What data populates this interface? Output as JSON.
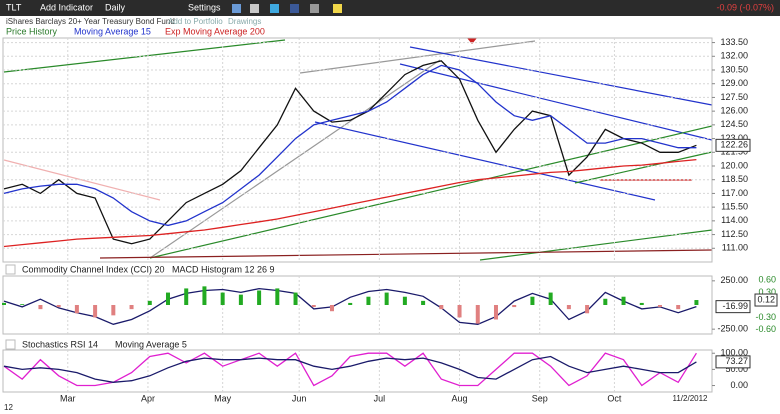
{
  "header": {
    "symbol": "TLT",
    "add_indicator": "Add Indicator",
    "period": "Daily",
    "settings": "Settings",
    "change": "-0.09 (-0.07%)",
    "name": "iShares Barclays 20+ Year Treasury Bond Fund",
    "add_to_portfolio": "Add to Portfolio",
    "drawings": "Drawings"
  },
  "chart_data": [
    {
      "type": "line",
      "ylim": [
        109.5,
        134
      ],
      "yticks": [
        {
          "value": 133.5,
          "label": "133.50"
        },
        {
          "value": 132,
          "label": "132.00"
        },
        {
          "value": 130.5,
          "label": "130.50"
        },
        {
          "value": 129,
          "label": "129.00"
        },
        {
          "value": 127.5,
          "label": "127.50"
        },
        {
          "value": 126,
          "label": "126.00"
        },
        {
          "value": 124.5,
          "label": "124.50"
        },
        {
          "value": 123,
          "label": "123.00"
        },
        {
          "value": 121.5,
          "label": "121.50"
        },
        {
          "value": 120,
          "label": "120.00"
        },
        {
          "value": 118.5,
          "label": "118.50"
        },
        {
          "value": 117,
          "label": "117.00"
        },
        {
          "value": 115.5,
          "label": "115.50"
        },
        {
          "value": 114,
          "label": "114.00"
        },
        {
          "value": 112.5,
          "label": "112.50"
        },
        {
          "value": 111,
          "label": "111.00"
        }
      ],
      "grid": true,
      "series": [
        {
          "name": "Price History",
          "color": "#111111",
          "values": [
            117.5,
            118,
            117,
            118.5,
            117,
            116.5,
            112,
            111.5,
            112,
            114,
            116,
            117,
            118,
            119.5,
            122,
            124.5,
            128.5,
            126,
            124.8,
            125,
            126,
            128,
            130,
            131,
            131.5,
            129.5,
            125,
            121.5,
            124,
            126,
            125.5,
            119,
            121,
            124,
            123,
            122.5,
            121.5,
            121.5,
            122.26
          ]
        },
        {
          "name": "Moving Average 15",
          "color": "#2233cc",
          "values": [
            117,
            117.5,
            117.8,
            118,
            118,
            117.5,
            116.5,
            115,
            114,
            113.5,
            114,
            115,
            116,
            117.5,
            119,
            121,
            123,
            124.5,
            125,
            125.5,
            126,
            127,
            128.5,
            130,
            131,
            130.5,
            129,
            127,
            125.5,
            125,
            125.5,
            124,
            122.5,
            122.5,
            123,
            123,
            122.5,
            122,
            122
          ]
        },
        {
          "name": "Exp Moving Average 200",
          "color": "#dd2222",
          "values": [
            111.2,
            111.4,
            111.6,
            111.8,
            112,
            112.1,
            112.2,
            112.3,
            112.4,
            112.6,
            112.8,
            113,
            113.3,
            113.6,
            113.9,
            114.2,
            114.6,
            115,
            115.4,
            115.8,
            116.2,
            116.6,
            117,
            117.4,
            117.8,
            118.2,
            118.5,
            118.7,
            118.9,
            119.1,
            119.3,
            119.4,
            119.6,
            119.8,
            120,
            120.1,
            120.3,
            120.5,
            120.7
          ]
        }
      ]
    },
    {
      "type": "line",
      "ylim": [
        -300,
        300
      ],
      "yticks": [
        {
          "value": 250,
          "label": "250.00"
        },
        {
          "value": -250,
          "label": "-250.00"
        }
      ],
      "y2lim": [
        -0.7,
        0.7
      ],
      "y2ticks": [
        {
          "value": 0.6,
          "label": "0.60"
        },
        {
          "value": 0.3,
          "label": "0.30"
        },
        {
          "value": -0.3,
          "label": "-0.30"
        },
        {
          "value": -0.6,
          "label": "-0.60"
        }
      ],
      "series": [
        {
          "name": "Commodity Channel Index (CCI) 20",
          "color": "#1a1a6a",
          "values": [
            40,
            -20,
            60,
            -30,
            -80,
            -120,
            -200,
            -150,
            -60,
            60,
            120,
            150,
            160,
            130,
            170,
            150,
            120,
            -40,
            -20,
            80,
            140,
            160,
            130,
            90,
            -30,
            -180,
            -200,
            -120,
            40,
            120,
            60,
            -150,
            -60,
            130,
            40,
            -40,
            -20,
            -80,
            -16.99
          ]
        },
        {
          "name": "MACD Histogram 12 26 9",
          "type": "bar",
          "axis": "y2",
          "color": "#22aa22",
          "color_negative": "#e08080",
          "values": [
            0.05,
            0.02,
            -0.1,
            -0.05,
            -0.2,
            -0.3,
            -0.25,
            -0.1,
            0.1,
            0.3,
            0.4,
            0.45,
            0.3,
            0.25,
            0.35,
            0.4,
            0.3,
            -0.05,
            -0.15,
            0.05,
            0.2,
            0.3,
            0.2,
            0.1,
            -0.1,
            -0.3,
            -0.45,
            -0.35,
            -0.05,
            0.2,
            0.3,
            -0.1,
            -0.2,
            0.15,
            0.2,
            0.05,
            -0.05,
            -0.1,
            0.12
          ]
        }
      ]
    },
    {
      "type": "line",
      "ylim": [
        -20,
        110
      ],
      "yticks": [
        {
          "value": 100,
          "label": "100.00"
        },
        {
          "value": 50,
          "label": "50.00"
        },
        {
          "value": 0,
          "label": "0.00"
        }
      ],
      "xlim": [
        0,
        38.8
      ],
      "xticks": [
        {
          "value": 3.5,
          "label": "Mar"
        },
        {
          "value": 7.9,
          "label": "Apr"
        },
        {
          "value": 12,
          "label": "May"
        },
        {
          "value": 16.2,
          "label": "Jun"
        },
        {
          "value": 20.6,
          "label": "Jul"
        },
        {
          "value": 25,
          "label": "Aug"
        },
        {
          "value": 29.4,
          "label": "Sep"
        },
        {
          "value": 33.5,
          "label": "Oct"
        }
      ],
      "date_label": "11/2/2012",
      "year_label": "12",
      "series": [
        {
          "name": "Stochastics RSI 14",
          "color": "#e020d0",
          "values": [
            60,
            20,
            80,
            30,
            0,
            0,
            10,
            40,
            90,
            100,
            70,
            100,
            60,
            80,
            100,
            60,
            100,
            0,
            30,
            90,
            100,
            100,
            60,
            100,
            20,
            0,
            0,
            50,
            100,
            100,
            60,
            0,
            30,
            100,
            80,
            0,
            40,
            10,
            100
          ]
        },
        {
          "name": "Moving Average 5",
          "color": "#1a1a6a",
          "values": [
            60,
            50,
            55,
            50,
            40,
            20,
            10,
            15,
            30,
            55,
            75,
            85,
            80,
            80,
            85,
            80,
            80,
            60,
            50,
            60,
            75,
            85,
            80,
            85,
            70,
            50,
            25,
            20,
            50,
            80,
            90,
            60,
            40,
            50,
            60,
            50,
            40,
            40,
            73.27
          ]
        }
      ]
    }
  ]
}
